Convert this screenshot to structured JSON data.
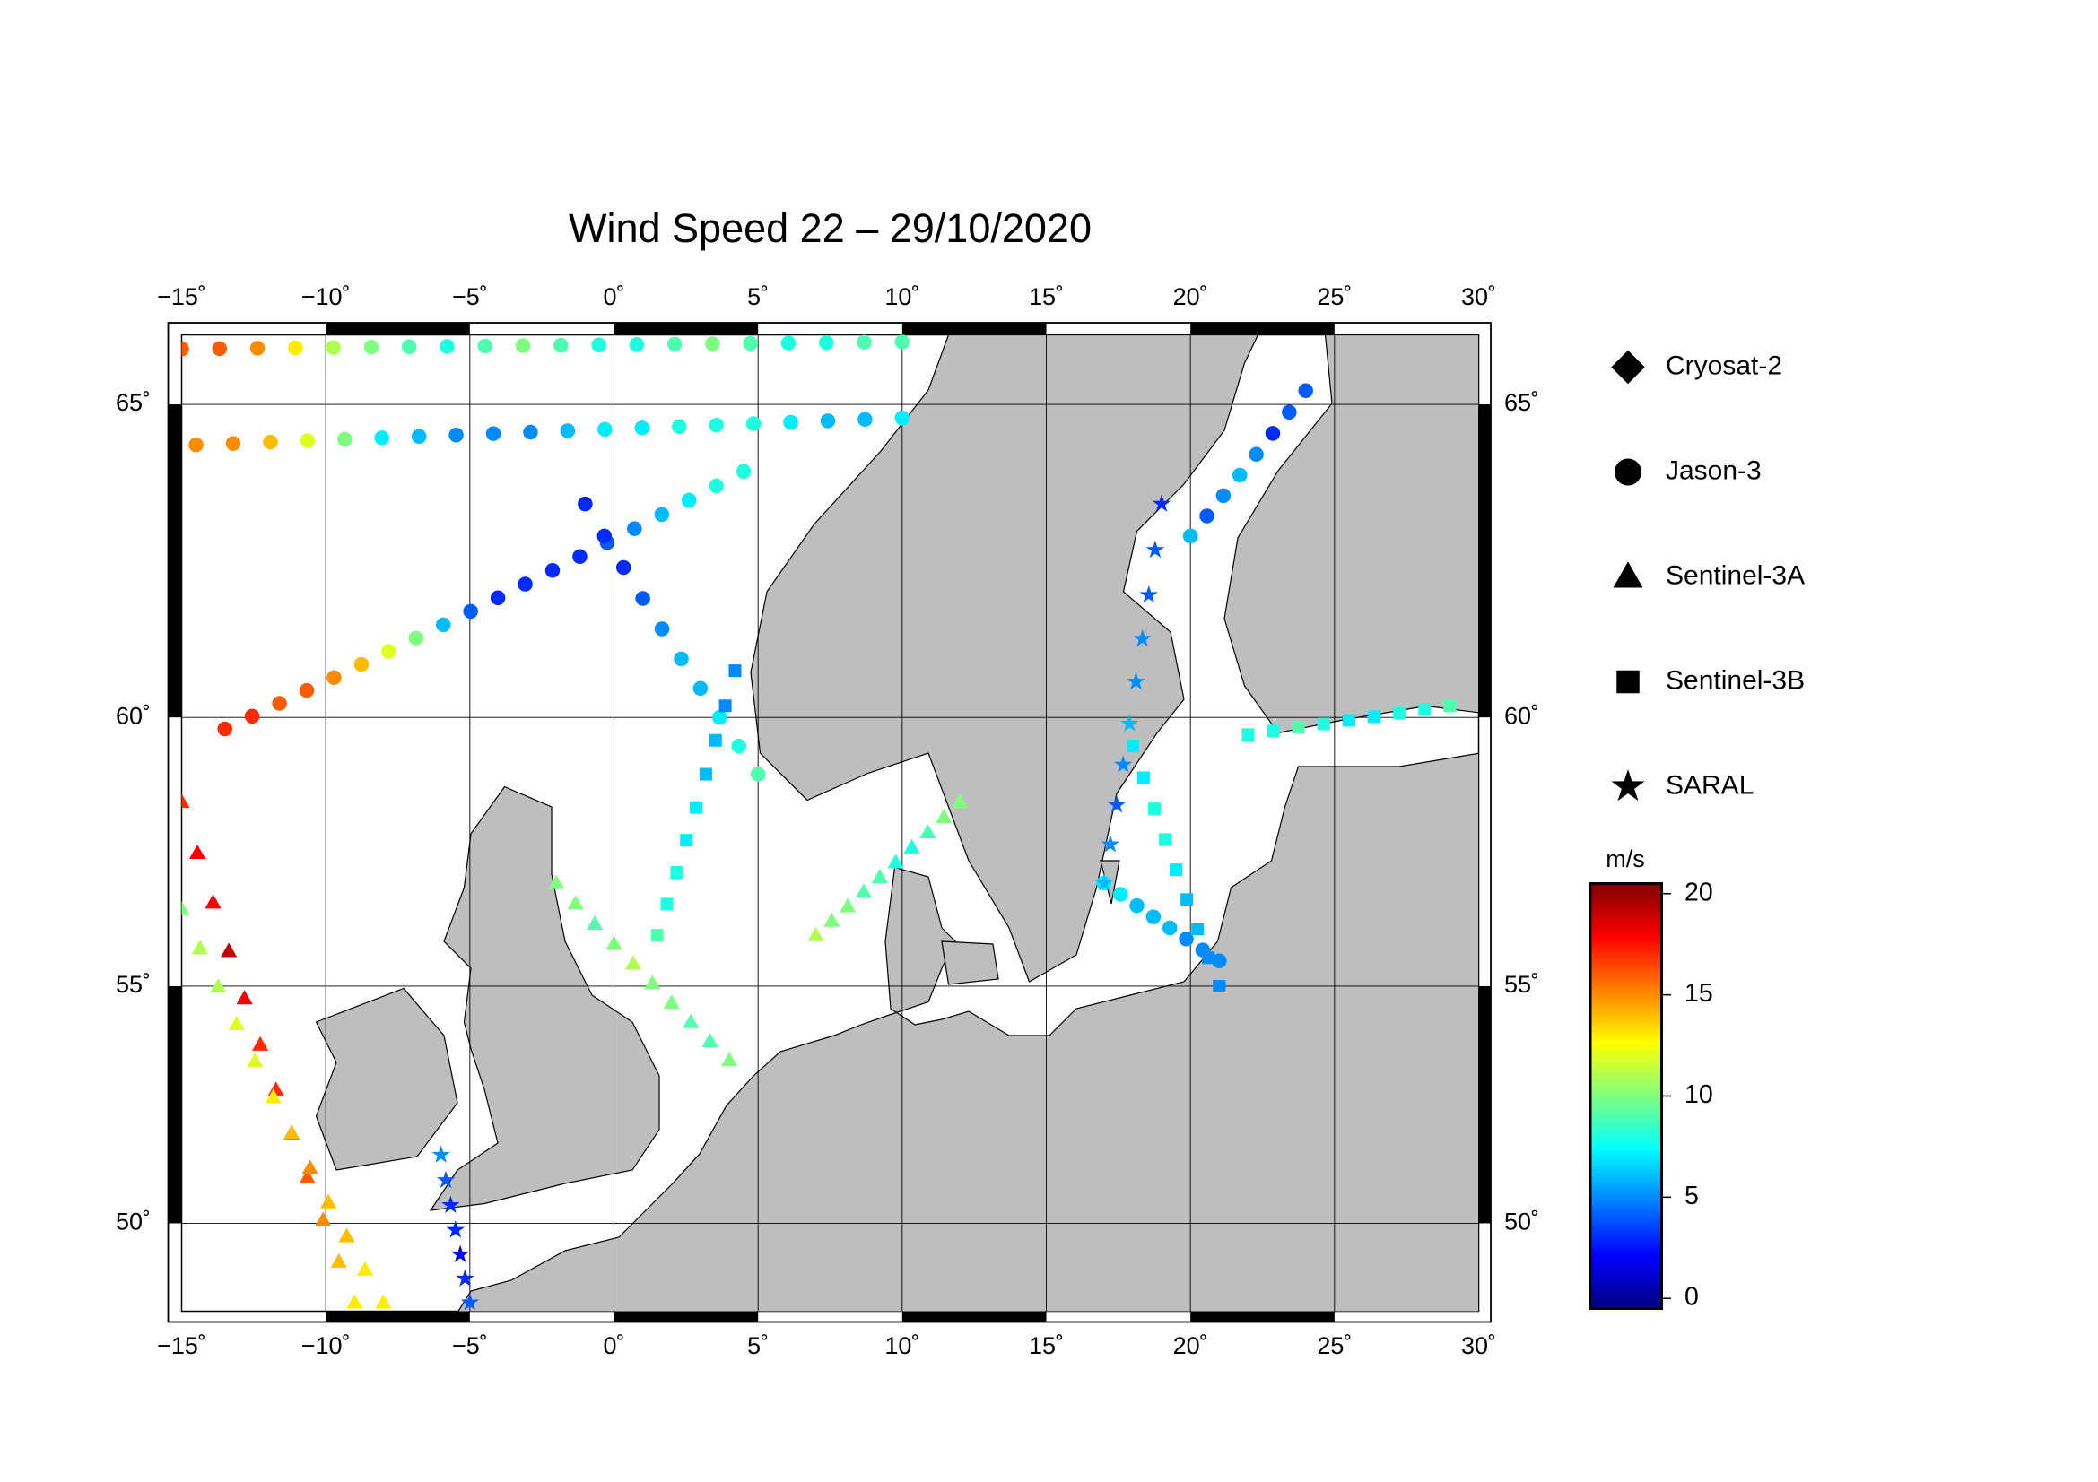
{
  "title": "Wind Speed 22 – 29/10/2020",
  "map": {
    "projection": "mercator",
    "xlim": [
      -15,
      30
    ],
    "ylim": [
      48,
      66
    ],
    "grid": true,
    "xticks": [
      {
        "value": -15,
        "label": "−15˚"
      },
      {
        "value": -10,
        "label": "−10˚"
      },
      {
        "value": -5,
        "label": "−5˚"
      },
      {
        "value": 0,
        "label": "0˚"
      },
      {
        "value": 5,
        "label": "5˚"
      },
      {
        "value": 10,
        "label": "10˚"
      },
      {
        "value": 15,
        "label": "15˚"
      },
      {
        "value": 20,
        "label": "20˚"
      },
      {
        "value": 25,
        "label": "25˚"
      },
      {
        "value": 30,
        "label": "30˚"
      }
    ],
    "yticks": [
      {
        "value": 50,
        "label": "50˚"
      },
      {
        "value": 55,
        "label": "55˚"
      },
      {
        "value": 60,
        "label": "60˚"
      },
      {
        "value": 65,
        "label": "65˚"
      }
    ]
  },
  "legend": [
    {
      "name": "Cryosat-2",
      "marker": "diamond"
    },
    {
      "name": "Jason-3",
      "marker": "circle"
    },
    {
      "name": "Sentinel-3A",
      "marker": "triangle"
    },
    {
      "name": "Sentinel-3B",
      "marker": "square"
    },
    {
      "name": "SARAL",
      "marker": "star"
    }
  ],
  "colorbar": {
    "label": "m/s",
    "lim": [
      -0.5,
      20.5
    ],
    "ticks": [
      0,
      5,
      10,
      15,
      20
    ],
    "colormap": [
      "#00007f",
      "#0000ff",
      "#007fff",
      "#00ffff",
      "#7fff7f",
      "#ffff00",
      "#ff7f00",
      "#ff0000",
      "#7f0000"
    ]
  },
  "tracks": [
    {
      "marker": "circle",
      "from": [
        -13.5,
        59.8
      ],
      "to": [
        4.5,
        64.0
      ],
      "speeds": [
        17,
        17,
        16,
        16,
        15,
        14,
        12,
        10,
        6,
        4,
        3,
        3,
        3,
        3,
        4,
        5,
        6,
        7,
        8,
        8
      ]
    },
    {
      "marker": "circle",
      "from": [
        -14.5,
        64.4
      ],
      "to": [
        10,
        64.8
      ],
      "speeds": [
        15,
        15,
        14,
        12,
        10,
        7,
        6,
        5,
        5,
        5,
        6,
        7,
        7,
        8,
        8,
        8,
        7,
        6,
        6,
        7
      ]
    },
    {
      "marker": "circle",
      "from": [
        -1,
        63.5
      ],
      "to": [
        5,
        59
      ],
      "speeds": [
        3,
        3,
        3,
        4,
        5,
        6,
        6,
        7,
        8,
        9
      ]
    },
    {
      "marker": "circle",
      "from": [
        -15,
        65.8
      ],
      "to": [
        10,
        65.9
      ],
      "speeds": [
        16,
        16,
        15,
        13,
        11,
        10,
        9,
        8,
        9,
        10,
        9,
        8,
        8,
        9,
        10,
        9,
        8,
        8,
        9,
        9
      ]
    },
    {
      "marker": "circle",
      "from": [
        24,
        65.2
      ],
      "to": [
        20,
        63
      ],
      "speeds": [
        4,
        4,
        3,
        5,
        6,
        5,
        4,
        6
      ]
    },
    {
      "marker": "circle",
      "from": [
        17,
        57
      ],
      "to": [
        21,
        55.5
      ],
      "speeds": [
        7,
        7,
        6,
        6,
        6,
        5,
        5,
        5
      ]
    },
    {
      "marker": "triangle",
      "from": [
        -15,
        58.5
      ],
      "to": [
        -9,
        48.2
      ],
      "speeds": [
        17,
        18,
        18,
        19,
        18,
        17,
        17,
        16,
        16,
        15,
        14,
        13
      ]
    },
    {
      "marker": "triangle",
      "from": [
        -8,
        48.2
      ],
      "to": [
        -15,
        56.5
      ],
      "speeds": [
        13,
        13,
        14,
        14,
        15,
        14,
        13,
        12,
        12,
        11,
        11,
        10
      ]
    },
    {
      "marker": "triangle",
      "from": [
        -2,
        57
      ],
      "to": [
        4,
        53.5
      ],
      "speeds": [
        10,
        10,
        9,
        10,
        11,
        10,
        10,
        9,
        9,
        10
      ]
    },
    {
      "marker": "triangle",
      "from": [
        7,
        56
      ],
      "to": [
        12,
        58.5
      ],
      "speeds": [
        11,
        10,
        10,
        9,
        9,
        8,
        8,
        9,
        10,
        10
      ]
    },
    {
      "marker": "square",
      "from": [
        4.2,
        60.8
      ],
      "to": [
        1.5,
        56
      ],
      "speeds": [
        5,
        5,
        6,
        6,
        7,
        7,
        8,
        8,
        9
      ]
    },
    {
      "marker": "square",
      "from": [
        18,
        59.5
      ],
      "to": [
        21,
        55
      ],
      "speeds": [
        7,
        7,
        8,
        8,
        7,
        6,
        6,
        5,
        5
      ]
    },
    {
      "marker": "square",
      "from": [
        22,
        59.7
      ],
      "to": [
        29,
        60.2
      ],
      "speeds": [
        8,
        8,
        9,
        8,
        7,
        7,
        8,
        8,
        9
      ]
    },
    {
      "marker": "star",
      "from": [
        -6,
        51.5
      ],
      "to": [
        -5,
        48.2
      ],
      "speeds": [
        5,
        4,
        3,
        3,
        2,
        3,
        4
      ]
    },
    {
      "marker": "star",
      "from": [
        19,
        63.5
      ],
      "to": [
        17,
        57
      ],
      "speeds": [
        3,
        4,
        4,
        5,
        5,
        6,
        5,
        4,
        5,
        6
      ]
    }
  ]
}
